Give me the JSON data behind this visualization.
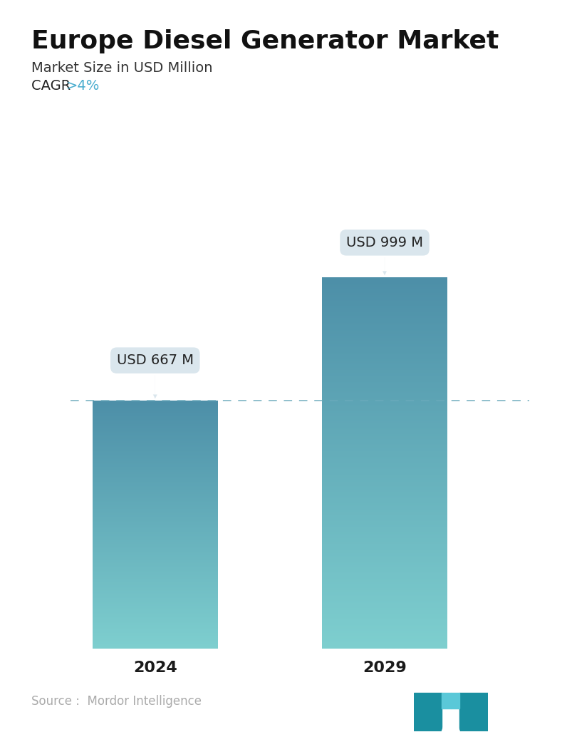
{
  "title": "Europe Diesel Generator Market",
  "subtitle": "Market Size in USD Million",
  "cagr_label": "CAGR ",
  "cagr_value": ">4%",
  "cagr_color": "#4aadcf",
  "categories": [
    "2024",
    "2029"
  ],
  "values": [
    667,
    999
  ],
  "bar_labels": [
    "USD 667 M",
    "USD 999 M"
  ],
  "bar_top_color": "#4d8fa8",
  "bar_bottom_color": "#7ecfcf",
  "dashed_line_color": "#6aaabb",
  "background_color": "#ffffff",
  "source_text": "Source :  Mordor Intelligence",
  "source_color": "#aaaaaa",
  "title_fontsize": 26,
  "subtitle_fontsize": 14,
  "cagr_fontsize": 14,
  "bar_label_fontsize": 14,
  "xtick_fontsize": 16,
  "source_fontsize": 12,
  "ylim_max": 1150,
  "callout_bg_color": "#dae6ed",
  "callout_text_color": "#222222"
}
